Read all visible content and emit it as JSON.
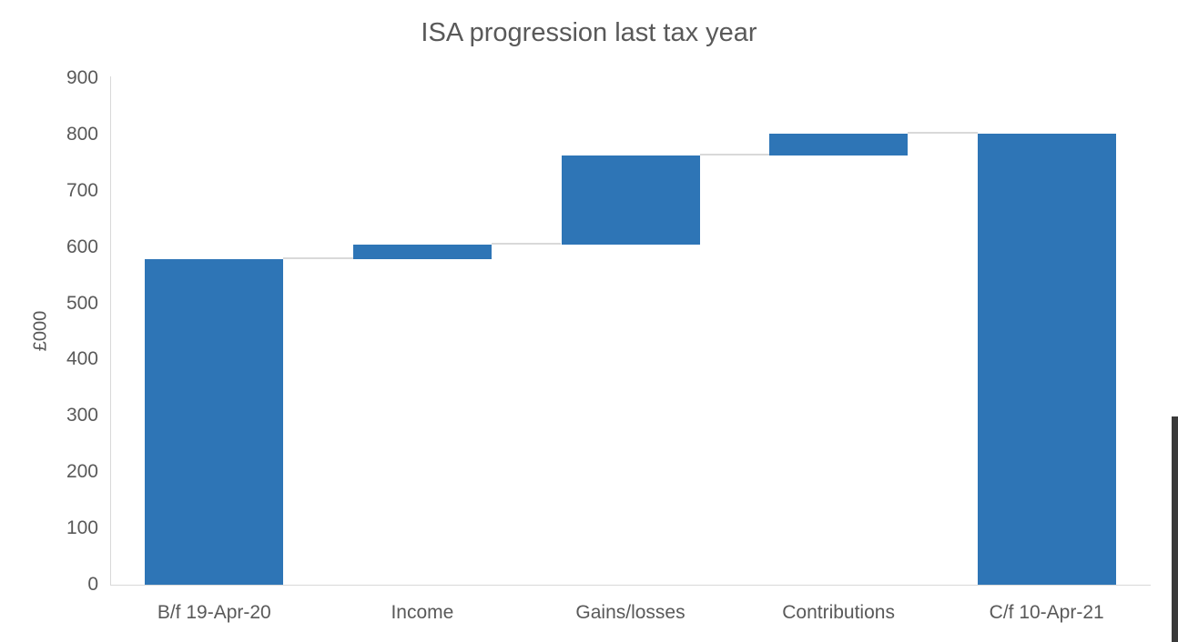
{
  "chart_data": {
    "type": "bar",
    "subtype": "waterfall",
    "title": "ISA progression last tax year",
    "ylabel": "£000",
    "xlabel": "",
    "units": "GBP thousands",
    "categories": [
      "B/f 19-Apr-20",
      "Income",
      "Gains/losses",
      "Contributions",
      "C/f 10-Apr-21"
    ],
    "bars": [
      {
        "category": "B/f 19-Apr-20",
        "base": 0,
        "top": 578,
        "delta": 578
      },
      {
        "category": "Income",
        "base": 578,
        "top": 605,
        "delta": 27
      },
      {
        "category": "Gains/losses",
        "base": 605,
        "top": 762,
        "delta": 157
      },
      {
        "category": "Contributions",
        "base": 762,
        "top": 801,
        "delta": 39
      },
      {
        "category": "C/f 10-Apr-21",
        "base": 0,
        "top": 801,
        "delta": 801
      }
    ],
    "connectors": [
      {
        "from": 0,
        "to": 1,
        "level": 578
      },
      {
        "from": 1,
        "to": 2,
        "level": 605
      },
      {
        "from": 2,
        "to": 3,
        "level": 762
      },
      {
        "from": 3,
        "to": 4,
        "level": 801
      }
    ],
    "ylim": [
      0,
      900
    ],
    "yticks": [
      0,
      100,
      200,
      300,
      400,
      500,
      600,
      700,
      800,
      900
    ],
    "grid": false,
    "legend": false,
    "legend_position": "none",
    "bar_color": "#2E75B6",
    "axis_color": "#D9D9D9",
    "connector_color": "#D9D9D9",
    "text_color": "#595959"
  },
  "scrollbar": {
    "color": "#3A3A3A"
  }
}
